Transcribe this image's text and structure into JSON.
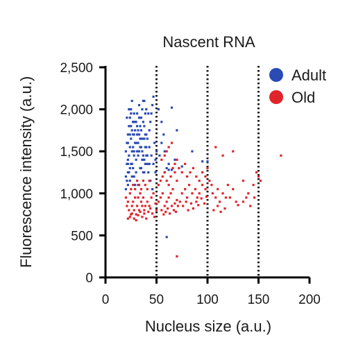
{
  "chart_data": {
    "type": "scatter",
    "title": "Nascent RNA",
    "xlabel": "Nucleus size (a.u.)",
    "ylabel": "Fluorescence intensity (a.u.)",
    "xlim": [
      0,
      200
    ],
    "ylim": [
      0,
      2500
    ],
    "xticks": [
      0,
      50,
      100,
      150,
      200
    ],
    "xtick_labels": [
      "0",
      "50",
      "100",
      "150",
      "200"
    ],
    "yticks": [
      0,
      500,
      1000,
      1500,
      2000,
      2500
    ],
    "ytick_labels": [
      "0",
      "500",
      "1,000",
      "1,500",
      "2,000",
      "2,500"
    ],
    "grid": false,
    "legend_position": "top-right",
    "reference_lines_x": [
      50,
      100,
      150
    ],
    "series": [
      {
        "name": "Adult",
        "color": "#2a4bb4",
        "points": [
          [
            20,
            1050
          ],
          [
            21,
            1150
          ],
          [
            22,
            1250
          ],
          [
            22,
            1350
          ],
          [
            23,
            1450
          ],
          [
            24,
            1550
          ],
          [
            25,
            1650
          ],
          [
            26,
            1750
          ],
          [
            27,
            1850
          ],
          [
            28,
            1950
          ],
          [
            20,
            1500
          ],
          [
            21,
            1600
          ],
          [
            22,
            1700
          ],
          [
            23,
            1800
          ],
          [
            24,
            1900
          ],
          [
            25,
            2000
          ],
          [
            26,
            2100
          ],
          [
            27,
            1300
          ],
          [
            28,
            1200
          ],
          [
            29,
            1100
          ],
          [
            30,
            1400
          ],
          [
            31,
            1500
          ],
          [
            32,
            1600
          ],
          [
            33,
            1700
          ],
          [
            34,
            1800
          ],
          [
            35,
            1900
          ],
          [
            36,
            2000
          ],
          [
            37,
            2100
          ],
          [
            38,
            1650
          ],
          [
            39,
            1550
          ],
          [
            40,
            1450
          ],
          [
            41,
            1350
          ],
          [
            42,
            1250
          ],
          [
            43,
            1750
          ],
          [
            44,
            1850
          ],
          [
            45,
            1950
          ],
          [
            46,
            2050
          ],
          [
            47,
            2150
          ],
          [
            48,
            1600
          ],
          [
            49,
            1400
          ],
          [
            22,
            1400
          ],
          [
            24,
            1300
          ],
          [
            26,
            1200
          ],
          [
            28,
            1500
          ],
          [
            30,
            1600
          ],
          [
            32,
            1100
          ],
          [
            34,
            1300
          ],
          [
            36,
            1400
          ],
          [
            38,
            1800
          ],
          [
            40,
            1700
          ],
          [
            21,
            1900
          ],
          [
            23,
            2000
          ],
          [
            25,
            1950
          ],
          [
            27,
            1850
          ],
          [
            29,
            1750
          ],
          [
            31,
            1950
          ],
          [
            33,
            2050
          ],
          [
            35,
            1550
          ],
          [
            37,
            1450
          ],
          [
            39,
            1350
          ],
          [
            20,
            1200
          ],
          [
            22,
            1100
          ],
          [
            24,
            1150
          ],
          [
            26,
            1350
          ],
          [
            28,
            1450
          ],
          [
            30,
            1250
          ],
          [
            32,
            1450
          ],
          [
            34,
            1550
          ],
          [
            36,
            1650
          ],
          [
            38,
            1250
          ],
          [
            41,
            1650
          ],
          [
            43,
            1550
          ],
          [
            45,
            1450
          ],
          [
            47,
            1350
          ],
          [
            49,
            1250
          ],
          [
            44,
            1150
          ],
          [
            46,
            1050
          ],
          [
            42,
            1950
          ],
          [
            40,
            2000
          ],
          [
            38,
            2100
          ],
          [
            25,
            1800
          ],
          [
            27,
            1700
          ],
          [
            29,
            1600
          ],
          [
            31,
            1800
          ],
          [
            33,
            1900
          ],
          [
            35,
            1750
          ],
          [
            37,
            1850
          ],
          [
            39,
            1950
          ],
          [
            41,
            1450
          ],
          [
            43,
            1350
          ],
          [
            22,
            1600
          ],
          [
            24,
            1700
          ],
          [
            26,
            1500
          ],
          [
            28,
            1700
          ],
          [
            30,
            1850
          ],
          [
            32,
            1750
          ],
          [
            34,
            1650
          ],
          [
            36,
            1500
          ],
          [
            38,
            1400
          ],
          [
            40,
            1550
          ],
          [
            21,
            1350
          ],
          [
            23,
            1250
          ],
          [
            25,
            1350
          ],
          [
            27,
            1550
          ],
          [
            29,
            1850
          ],
          [
            31,
            1700
          ],
          [
            33,
            1500
          ],
          [
            35,
            1300
          ],
          [
            37,
            1250
          ],
          [
            39,
            1700
          ],
          [
            52,
            2000
          ],
          [
            55,
            1850
          ],
          [
            58,
            1500
          ],
          [
            60,
            1300
          ],
          [
            62,
            1280
          ],
          [
            65,
            2020
          ],
          [
            70,
            1750
          ],
          [
            55,
            1600
          ],
          [
            53,
            1450
          ],
          [
            57,
            1700
          ],
          [
            60,
            480
          ],
          [
            68,
            1400
          ],
          [
            85,
            1500
          ],
          [
            95,
            1380
          ],
          [
            100,
            1380
          ],
          [
            75,
            1320
          ],
          [
            65,
            1280
          ],
          [
            58,
            1250
          ],
          [
            62,
            1350
          ],
          [
            50,
            1500
          ]
        ]
      },
      {
        "name": "Old",
        "color": "#e0242c",
        "points": [
          [
            21,
            850
          ],
          [
            23,
            800
          ],
          [
            25,
            750
          ],
          [
            27,
            900
          ],
          [
            29,
            950
          ],
          [
            31,
            850
          ],
          [
            33,
            800
          ],
          [
            35,
            900
          ],
          [
            37,
            950
          ],
          [
            39,
            850
          ],
          [
            20,
            950
          ],
          [
            22,
            900
          ],
          [
            24,
            1000
          ],
          [
            26,
            850
          ],
          [
            28,
            800
          ],
          [
            30,
            750
          ],
          [
            32,
            950
          ],
          [
            34,
            1000
          ],
          [
            36,
            850
          ],
          [
            38,
            800
          ],
          [
            22,
            700
          ],
          [
            24,
            720
          ],
          [
            26,
            760
          ],
          [
            28,
            700
          ],
          [
            30,
            680
          ],
          [
            32,
            740
          ],
          [
            34,
            780
          ],
          [
            36,
            720
          ],
          [
            38,
            760
          ],
          [
            40,
            700
          ],
          [
            41,
            900
          ],
          [
            43,
            850
          ],
          [
            45,
            950
          ],
          [
            47,
            1000
          ],
          [
            49,
            880
          ],
          [
            42,
            780
          ],
          [
            44,
            820
          ],
          [
            46,
            760
          ],
          [
            48,
            720
          ],
          [
            50,
            800
          ],
          [
            25,
            1050
          ],
          [
            27,
            1100
          ],
          [
            29,
            1050
          ],
          [
            31,
            1150
          ],
          [
            33,
            1100
          ],
          [
            35,
            1050
          ],
          [
            37,
            1150
          ],
          [
            39,
            1100
          ],
          [
            41,
            1050
          ],
          [
            43,
            1150
          ],
          [
            52,
            900
          ],
          [
            54,
            950
          ],
          [
            56,
            1000
          ],
          [
            58,
            850
          ],
          [
            60,
            900
          ],
          [
            62,
            950
          ],
          [
            64,
            1000
          ],
          [
            66,
            1050
          ],
          [
            68,
            880
          ],
          [
            70,
            920
          ],
          [
            55,
            800
          ],
          [
            57,
            750
          ],
          [
            59,
            780
          ],
          [
            61,
            820
          ],
          [
            63,
            760
          ],
          [
            65,
            850
          ],
          [
            67,
            800
          ],
          [
            69,
            780
          ],
          [
            71,
            850
          ],
          [
            73,
            900
          ],
          [
            52,
            1100
          ],
          [
            54,
            1150
          ],
          [
            56,
            1200
          ],
          [
            58,
            1250
          ],
          [
            60,
            1150
          ],
          [
            62,
            1100
          ],
          [
            64,
            1200
          ],
          [
            66,
            1300
          ],
          [
            68,
            1250
          ],
          [
            70,
            1150
          ],
          [
            55,
            1400
          ],
          [
            58,
            1450
          ],
          [
            60,
            1500
          ],
          [
            62,
            1550
          ],
          [
            65,
            1600
          ],
          [
            68,
            1350
          ],
          [
            70,
            1400
          ],
          [
            72,
            1300
          ],
          [
            75,
            1250
          ],
          [
            78,
            1350
          ],
          [
            75,
            1000
          ],
          [
            78,
            1050
          ],
          [
            80,
            950
          ],
          [
            82,
            1100
          ],
          [
            85,
            1000
          ],
          [
            88,
            1050
          ],
          [
            90,
            950
          ],
          [
            92,
            1000
          ],
          [
            95,
            1100
          ],
          [
            98,
            1050
          ],
          [
            76,
            850
          ],
          [
            79,
            900
          ],
          [
            81,
            800
          ],
          [
            84,
            880
          ],
          [
            86,
            820
          ],
          [
            89,
            900
          ],
          [
            91,
            860
          ],
          [
            94,
            940
          ],
          [
            97,
            880
          ],
          [
            99,
            960
          ],
          [
            80,
            1200
          ],
          [
            83,
            1250
          ],
          [
            86,
            1300
          ],
          [
            89,
            1200
          ],
          [
            92,
            1150
          ],
          [
            95,
            1250
          ],
          [
            98,
            1200
          ],
          [
            100,
            1300
          ],
          [
            102,
            1150
          ],
          [
            104,
            1100
          ],
          [
            105,
            1000
          ],
          [
            108,
            950
          ],
          [
            110,
            1050
          ],
          [
            112,
            900
          ],
          [
            115,
            1000
          ],
          [
            118,
            950
          ],
          [
            120,
            1100
          ],
          [
            122,
            950
          ],
          [
            125,
            1050
          ],
          [
            128,
            900
          ],
          [
            108,
            1550
          ],
          [
            115,
            1450
          ],
          [
            125,
            1500
          ],
          [
            135,
            1150
          ],
          [
            140,
            1000
          ],
          [
            145,
            1100
          ],
          [
            150,
            1200
          ],
          [
            148,
            1250
          ],
          [
            152,
            1150
          ],
          [
            172,
            1450
          ],
          [
            106,
            800
          ],
          [
            110,
            850
          ],
          [
            113,
            780
          ],
          [
            117,
            820
          ],
          [
            130,
            860
          ],
          [
            135,
            900
          ],
          [
            138,
            950
          ],
          [
            142,
            850
          ],
          [
            146,
            950
          ],
          [
            70,
            250
          ]
        ]
      }
    ]
  }
}
